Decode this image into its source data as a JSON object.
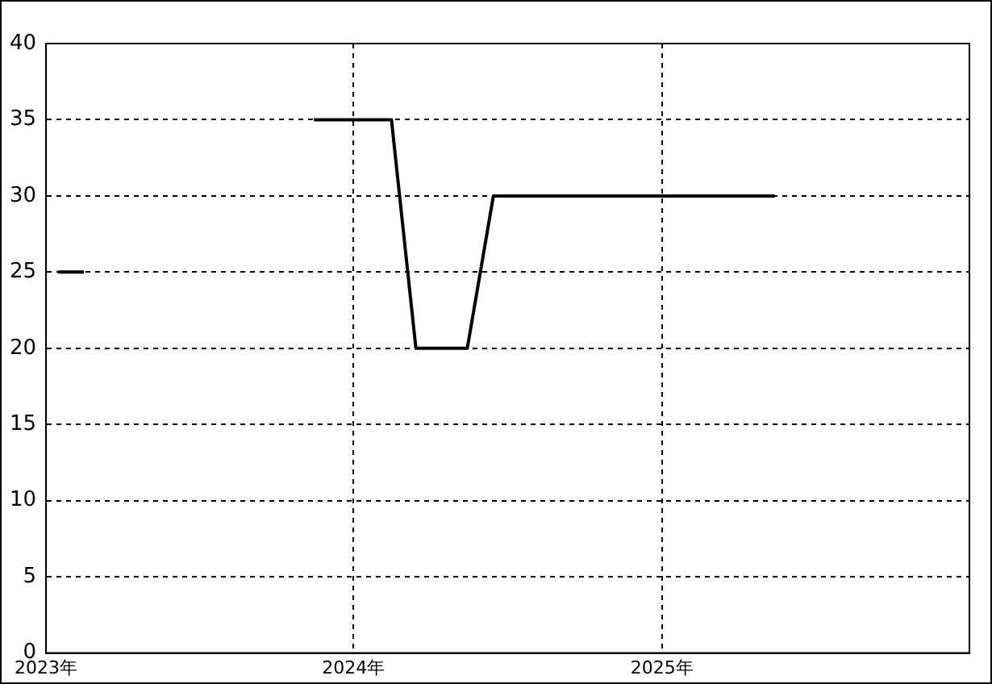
{
  "chart_data": {
    "type": "line",
    "x": [
      "2023-01-15",
      "2023-02-15",
      "2023-03-15",
      "2023-11-15",
      "2023-12-15",
      "2024-01-15",
      "2024-02-15",
      "2024-03-15",
      "2024-04-15",
      "2024-05-15",
      "2024-06-15",
      "2024-07-15",
      "2024-08-15",
      "2024-09-15",
      "2024-10-15",
      "2024-11-15",
      "2024-12-15",
      "2025-01-15",
      "2025-02-15",
      "2025-03-15",
      "2025-04-15",
      "2025-05-15"
    ],
    "series": [
      {
        "color": "#000000",
        "values": [
          25,
          25,
          null,
          35,
          35,
          35,
          35,
          20,
          20,
          20,
          30,
          30,
          30,
          30,
          30,
          30,
          30,
          30,
          30,
          30,
          30,
          30
        ]
      }
    ],
    "xlim": [
      "2023-01-01",
      "2026-01-01"
    ],
    "xticks": [
      {
        "value": "2023-01-01",
        "label": "2023年"
      },
      {
        "value": "2024-01-01",
        "label": "2024年"
      },
      {
        "value": "2025-01-01",
        "label": "2025年"
      }
    ],
    "ylim": [
      0,
      40
    ],
    "yticks": [
      0,
      5,
      10,
      15,
      20,
      25,
      30,
      35,
      40
    ],
    "grid": true,
    "legend": false,
    "marker": "none",
    "line_style": "solid"
  }
}
